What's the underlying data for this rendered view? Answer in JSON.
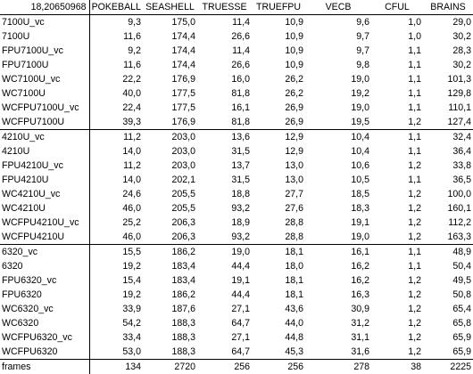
{
  "corner": "18,20650968",
  "columns": [
    "POKEBALL",
    "SEASHELL",
    "TRUESSE",
    "TRUEFPU",
    "VECB",
    "CFUL",
    "BRAINS"
  ],
  "groups": [
    [
      [
        "7100U_vc",
        "9,3",
        "175,0",
        "11,4",
        "10,9",
        "9,6",
        "1,0",
        "29,0"
      ],
      [
        "7100U",
        "11,6",
        "174,4",
        "26,6",
        "10,9",
        "9,7",
        "1,0",
        "30,2"
      ],
      [
        "FPU7100U_vc",
        "9,2",
        "174,4",
        "11,4",
        "10,9",
        "9,7",
        "1,1",
        "28,3"
      ],
      [
        "FPU7100U",
        "11,6",
        "174,4",
        "26,6",
        "10,9",
        "9,8",
        "1,1",
        "30,2"
      ],
      [
        "WC7100U_vc",
        "22,2",
        "176,9",
        "16,0",
        "26,2",
        "19,0",
        "1,1",
        "101,3"
      ],
      [
        "WC7100U",
        "40,0",
        "177,5",
        "81,8",
        "26,2",
        "19,2",
        "1,1",
        "129,8"
      ],
      [
        "WCFPU7100U_vc",
        "22,4",
        "177,5",
        "16,1",
        "26,9",
        "19,0",
        "1,1",
        "110,1"
      ],
      [
        "WCFPU7100U",
        "39,3",
        "176,9",
        "81,8",
        "26,9",
        "19,5",
        "1,2",
        "127,4"
      ]
    ],
    [
      [
        "4210U_vc",
        "11,2",
        "203,0",
        "13,6",
        "12,9",
        "10,4",
        "1,1",
        "32,4"
      ],
      [
        "4210U",
        "14,0",
        "203,0",
        "31,5",
        "12,9",
        "10,4",
        "1,1",
        "36,4"
      ],
      [
        "FPU4210U_vc",
        "11,2",
        "203,0",
        "13,7",
        "13,0",
        "10,6",
        "1,2",
        "33,8"
      ],
      [
        "FPU4210U",
        "14,0",
        "202,1",
        "31,5",
        "13,0",
        "10,5",
        "1,1",
        "36,5"
      ],
      [
        "WC4210U_vc",
        "24,6",
        "205,5",
        "18,8",
        "27,7",
        "18,5",
        "1,2",
        "100,0"
      ],
      [
        "WC4210U",
        "46,0",
        "205,5",
        "93,2",
        "27,6",
        "18,3",
        "1,2",
        "160,1"
      ],
      [
        "WCFPU4210U_vc",
        "25,2",
        "206,3",
        "18,9",
        "28,8",
        "19,1",
        "1,2",
        "112,2"
      ],
      [
        "WCFPU4210U",
        "46,0",
        "206,3",
        "93,2",
        "28,8",
        "19,0",
        "1,2",
        "163,3"
      ]
    ],
    [
      [
        "6320_vc",
        "15,5",
        "186,2",
        "19,0",
        "18,1",
        "16,1",
        "1,1",
        "48,9"
      ],
      [
        "6320",
        "19,2",
        "183,4",
        "44,4",
        "18,0",
        "16,2",
        "1,1",
        "50,4"
      ],
      [
        "FPU6320_vc",
        "15,4",
        "183,4",
        "19,1",
        "18,1",
        "16,2",
        "1,2",
        "49,5"
      ],
      [
        "FPU6320",
        "19,2",
        "186,2",
        "44,4",
        "18,1",
        "16,3",
        "1,2",
        "50,8"
      ],
      [
        "WC6320_vc",
        "33,9",
        "187,6",
        "27,1",
        "43,6",
        "30,9",
        "1,2",
        "65,4"
      ],
      [
        "WC6320",
        "54,2",
        "188,3",
        "64,7",
        "44,0",
        "31,2",
        "1,2",
        "65,8"
      ],
      [
        "WCFPU6320_vc",
        "33,4",
        "188,3",
        "27,1",
        "44,8",
        "31,1",
        "1,2",
        "65,9"
      ],
      [
        "WCFPU6320",
        "53,0",
        "188,3",
        "64,7",
        "45,3",
        "31,6",
        "1,2",
        "65,9"
      ]
    ]
  ],
  "footer": [
    "frames",
    "134",
    "2720",
    "256",
    "256",
    "278",
    "38",
    "2225"
  ]
}
